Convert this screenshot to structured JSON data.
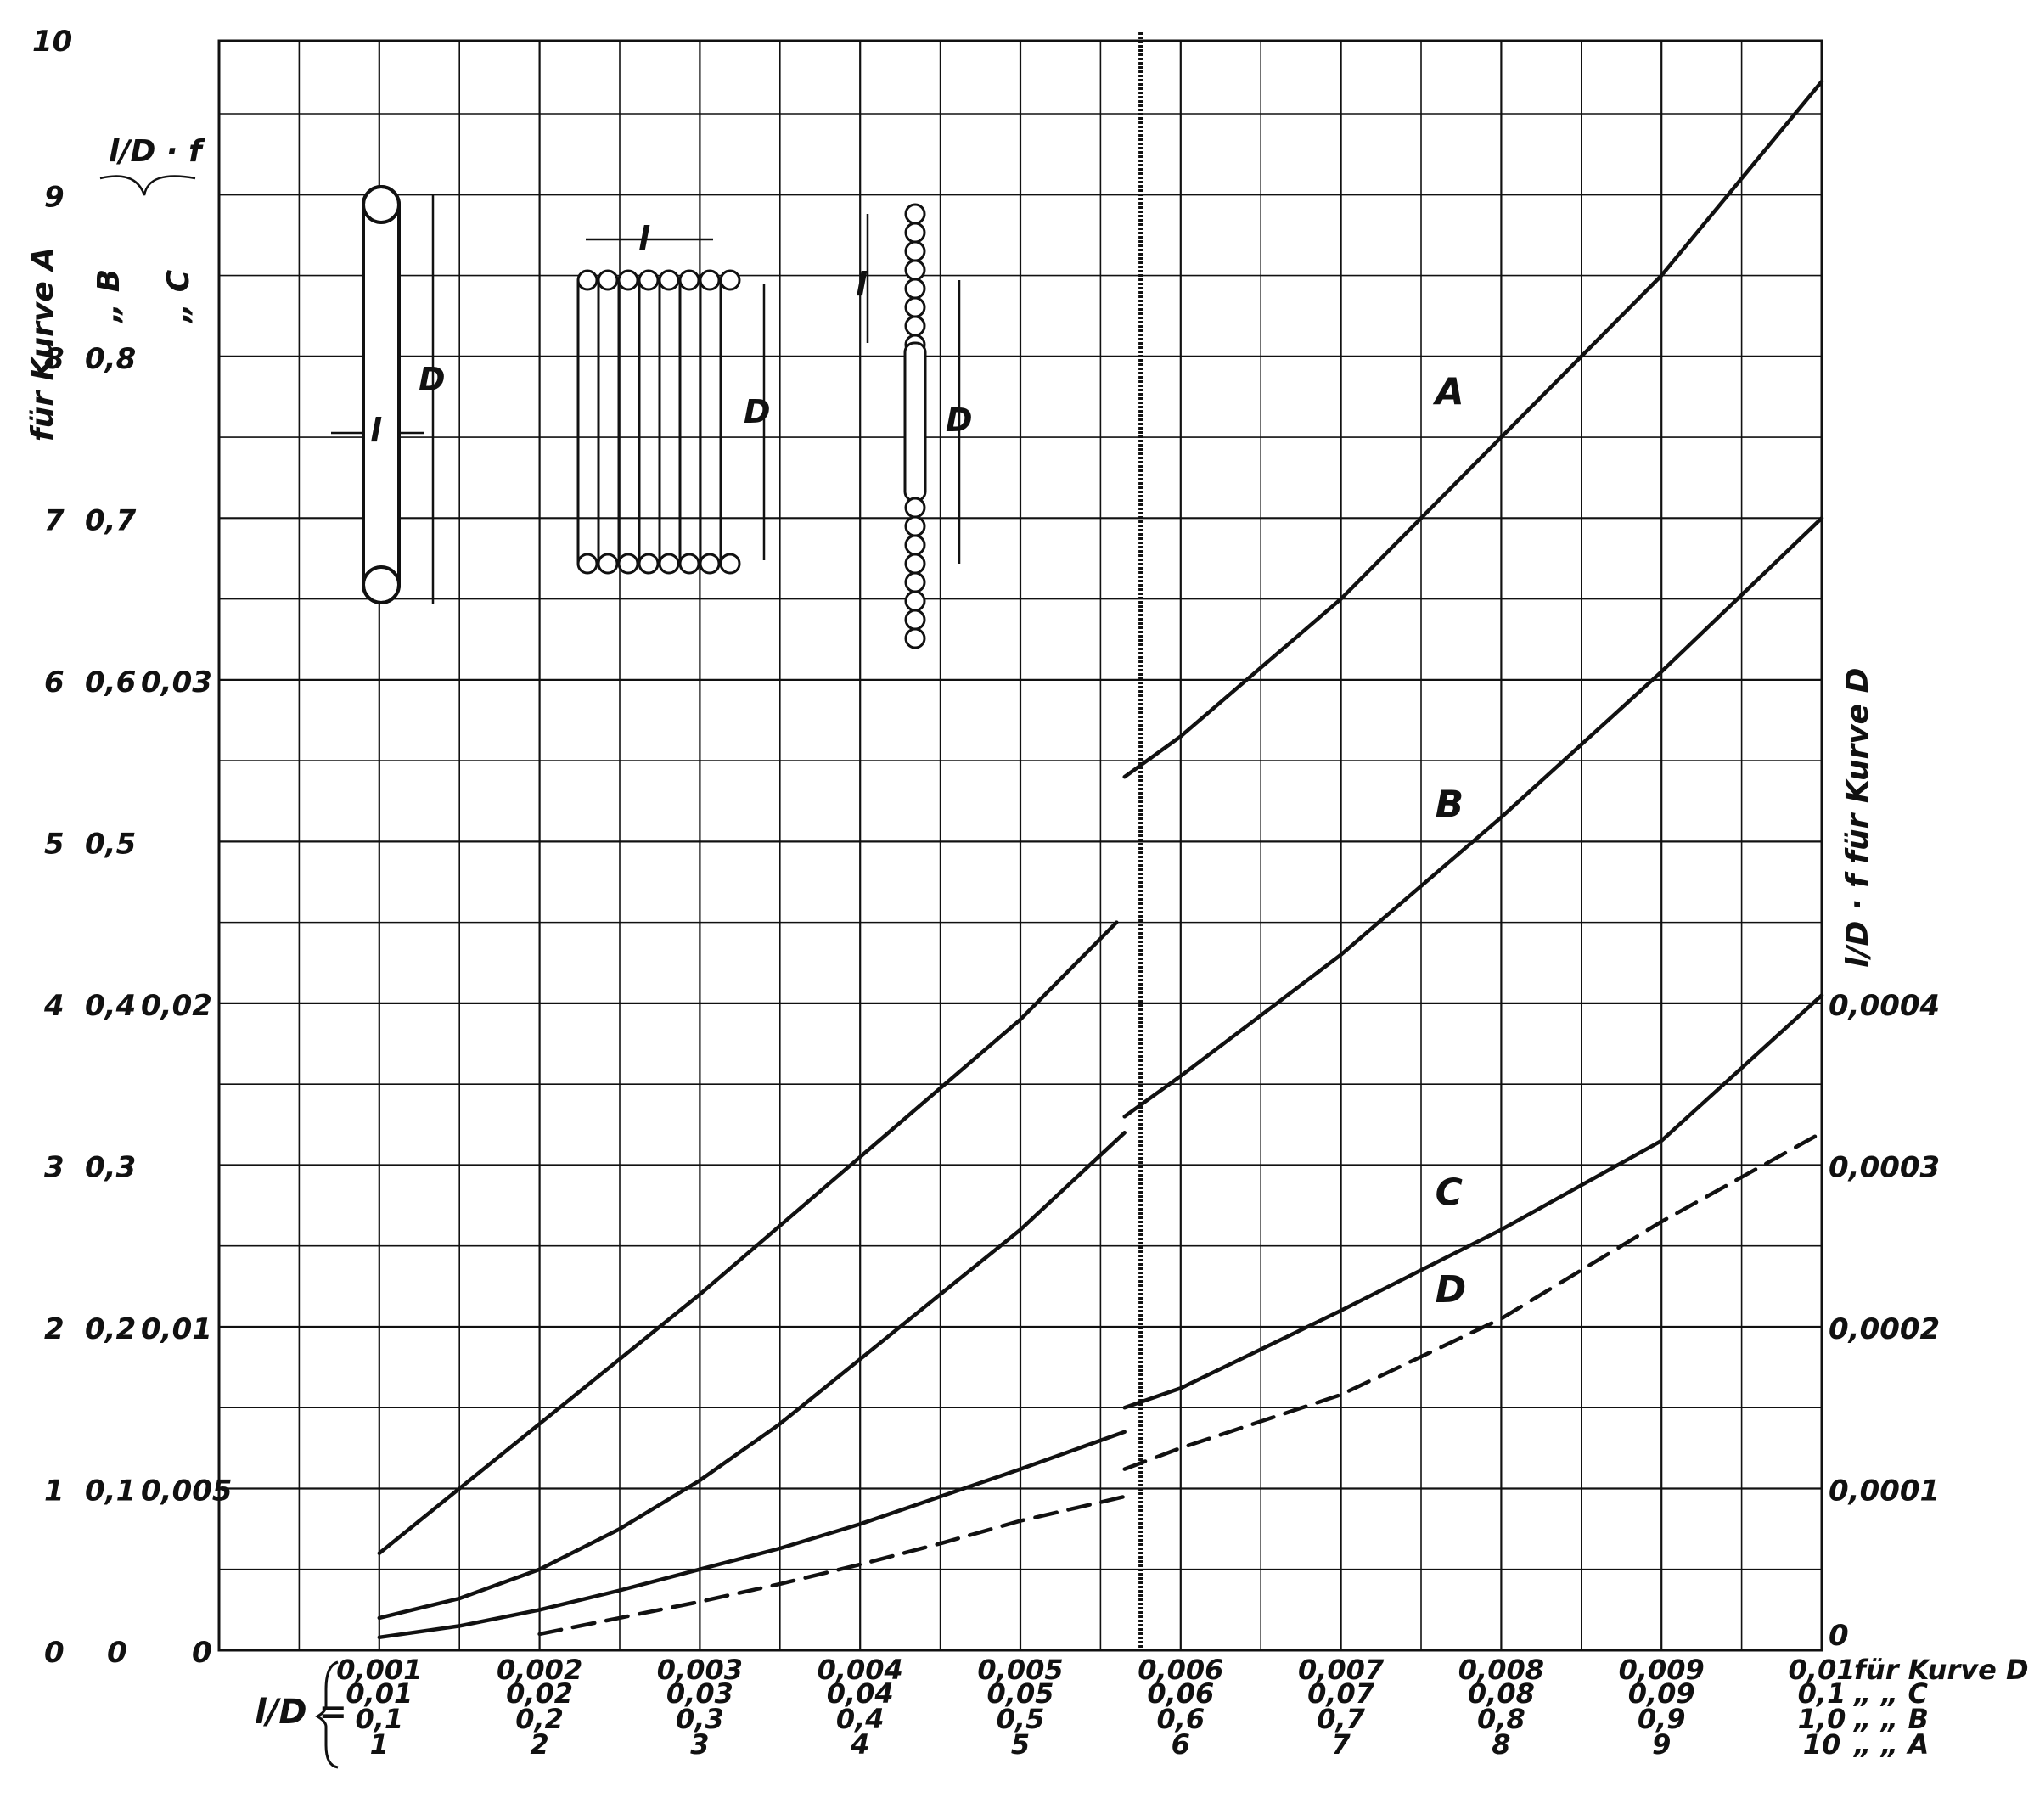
{
  "chart_data": {
    "type": "line",
    "xlabel": "l/D =",
    "ylabel_left_fraction": "l/D · f",
    "ylabel_left_curves": [
      "für Kurve A",
      "„ B",
      "„ C"
    ],
    "ylabel_right": "l/D · f für Kurve D",
    "grid": true,
    "xlim": [
      0,
      10
    ],
    "ylim": [
      0,
      10
    ],
    "x_label_rows": [
      {
        "suffix": "für Kurve D",
        "ticks": [
          "0,001",
          "0,002",
          "0,003",
          "0,004",
          "0,005",
          "0,006",
          "0,007",
          "0,008",
          "0,009",
          "0,01"
        ]
      },
      {
        "suffix": "„ „ C",
        "ticks": [
          "0,01",
          "0,02",
          "0,03",
          "0,04",
          "0,05",
          "0,06",
          "0,07",
          "0,08",
          "0,09",
          "0,1"
        ]
      },
      {
        "suffix": "„ „ B",
        "ticks": [
          "0,1",
          "0,2",
          "0,3",
          "0,4",
          "0,5",
          "0,6",
          "0,7",
          "0,8",
          "0,9",
          "1,0"
        ]
      },
      {
        "suffix": "„ „ A",
        "ticks": [
          "1",
          "2",
          "3",
          "4",
          "5",
          "6",
          "7",
          "8",
          "9",
          "10"
        ]
      }
    ],
    "y_ticks_A": [
      {
        "v": 0,
        "t": "0"
      },
      {
        "v": 1,
        "t": "1"
      },
      {
        "v": 2,
        "t": "2"
      },
      {
        "v": 3,
        "t": "3"
      },
      {
        "v": 4,
        "t": "4"
      },
      {
        "v": 5,
        "t": "5"
      },
      {
        "v": 6,
        "t": "6"
      },
      {
        "v": 7,
        "t": "7"
      },
      {
        "v": 8,
        "t": "8"
      },
      {
        "v": 9,
        "t": "9"
      },
      {
        "v": 10,
        "t": "10"
      }
    ],
    "y_ticks_B": [
      {
        "v": 1,
        "t": "0,1"
      },
      {
        "v": 2,
        "t": "0,2"
      },
      {
        "v": 3,
        "t": "0,3"
      },
      {
        "v": 4,
        "t": "0,4"
      },
      {
        "v": 5,
        "t": "0,5"
      },
      {
        "v": 6,
        "t": "0,6"
      },
      {
        "v": 7,
        "t": "0,7"
      },
      {
        "v": 8,
        "t": "0,8"
      }
    ],
    "y_ticks_C": [
      {
        "v": 1,
        "t": "0,005"
      },
      {
        "v": 2,
        "t": "0,01"
      },
      {
        "v": 4,
        "t": "0,02"
      },
      {
        "v": 6,
        "t": "0,03"
      }
    ],
    "y_ticks_D": [
      {
        "v": 0,
        "t": "0"
      },
      {
        "v": 1,
        "t": "0,0001"
      },
      {
        "v": 2,
        "t": "0,0002"
      },
      {
        "v": 3,
        "t": "0,0003"
      },
      {
        "v": 4,
        "t": "0,0004"
      }
    ],
    "series": [
      {
        "name": "A",
        "style": "solid",
        "segments": [
          [
            [
              1.0,
              0.6
            ],
            [
              2.0,
              1.4
            ],
            [
              3.0,
              2.2
            ],
            [
              4.0,
              3.05
            ],
            [
              5.0,
              3.9
            ],
            [
              5.6,
              4.5
            ]
          ],
          [
            [
              5.65,
              5.4
            ],
            [
              6.0,
              5.65
            ],
            [
              7.0,
              6.5
            ],
            [
              8.0,
              7.5
            ],
            [
              9.0,
              8.5
            ],
            [
              10.0,
              9.7
            ]
          ]
        ]
      },
      {
        "name": "B",
        "style": "solid",
        "segments": [
          [
            [
              1.0,
              0.2
            ],
            [
              1.5,
              0.32
            ],
            [
              2.0,
              0.5
            ],
            [
              2.5,
              0.75
            ],
            [
              3.0,
              1.05
            ],
            [
              3.5,
              1.4
            ],
            [
              4.0,
              1.8
            ],
            [
              4.5,
              2.2
            ],
            [
              5.0,
              2.6
            ],
            [
              5.65,
              3.2
            ]
          ],
          [
            [
              5.65,
              3.3
            ],
            [
              6.0,
              3.55
            ],
            [
              7.0,
              4.3
            ],
            [
              8.0,
              5.15
            ],
            [
              9.0,
              6.05
            ],
            [
              10.0,
              7.0
            ]
          ]
        ]
      },
      {
        "name": "C",
        "style": "solid",
        "segments": [
          [
            [
              1.0,
              0.08
            ],
            [
              1.5,
              0.15
            ],
            [
              2.0,
              0.25
            ],
            [
              2.5,
              0.37
            ],
            [
              3.0,
              0.5
            ],
            [
              3.5,
              0.63
            ],
            [
              4.0,
              0.78
            ],
            [
              4.5,
              0.95
            ],
            [
              5.0,
              1.12
            ],
            [
              5.65,
              1.35
            ]
          ],
          [
            [
              5.65,
              1.5
            ],
            [
              6.0,
              1.62
            ],
            [
              7.0,
              2.1
            ],
            [
              8.0,
              2.6
            ],
            [
              9.0,
              3.15
            ],
            [
              10.0,
              4.05
            ]
          ]
        ]
      },
      {
        "name": "D",
        "style": "dashed",
        "segments": [
          [
            [
              2.0,
              0.1
            ],
            [
              2.5,
              0.2
            ],
            [
              3.0,
              0.3
            ],
            [
              3.5,
              0.41
            ],
            [
              4.0,
              0.53
            ],
            [
              4.5,
              0.66
            ],
            [
              5.0,
              0.8
            ],
            [
              5.65,
              0.95
            ]
          ],
          [
            [
              5.65,
              1.12
            ],
            [
              6.0,
              1.25
            ],
            [
              7.0,
              1.58
            ],
            [
              8.0,
              2.05
            ],
            [
              9.0,
              2.65
            ],
            [
              10.0,
              3.2
            ]
          ]
        ]
      }
    ],
    "curve_labels": [
      {
        "series": "A",
        "text": "A",
        "x": 7.8,
        "y": 7.65
      },
      {
        "series": "B",
        "text": "B",
        "x": 7.8,
        "y": 5.1
      },
      {
        "series": "C",
        "text": "C",
        "x": 7.8,
        "y": 2.7
      },
      {
        "series": "D",
        "text": "D",
        "x": 7.8,
        "y": 2.1
      }
    ],
    "inset_labels": {
      "l": "l",
      "D": "D"
    }
  }
}
